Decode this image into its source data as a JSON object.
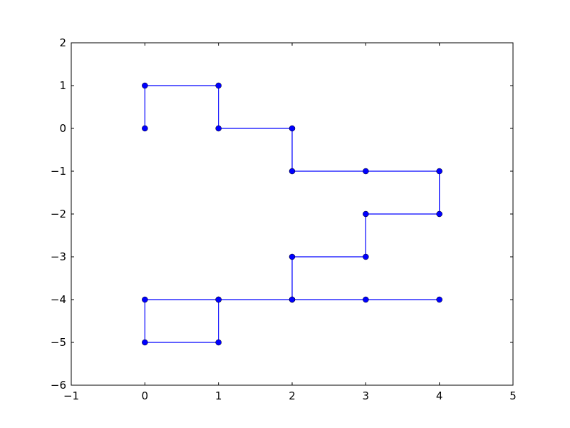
{
  "chart_data": {
    "type": "line",
    "title": "",
    "xlabel": "",
    "ylabel": "",
    "xlim": [
      -1,
      5
    ],
    "ylim": [
      -6,
      2
    ],
    "xticks": [
      -1,
      0,
      1,
      2,
      3,
      4,
      5
    ],
    "yticks": [
      -6,
      -5,
      -4,
      -3,
      -2,
      -1,
      0,
      1,
      2
    ],
    "xtick_labels": [
      "−1",
      "0",
      "1",
      "2",
      "3",
      "4",
      "5"
    ],
    "ytick_labels": [
      "−6",
      "−5",
      "−4",
      "−3",
      "−2",
      "−1",
      "0",
      "1",
      "2"
    ],
    "grid": false,
    "legend": "none",
    "series": [
      {
        "color": "#0000ff",
        "marker": "circle",
        "x": [
          0,
          0,
          1,
          1,
          2,
          2,
          3,
          4,
          4,
          3,
          3,
          2,
          2,
          1,
          1,
          0,
          0,
          1,
          2,
          3,
          4
        ],
        "y": [
          0,
          1,
          1,
          0,
          0,
          -1,
          -1,
          -1,
          -2,
          -2,
          -3,
          -3,
          -4,
          -4,
          -5,
          -5,
          -4,
          -4,
          -4,
          -4,
          -4
        ]
      }
    ]
  }
}
